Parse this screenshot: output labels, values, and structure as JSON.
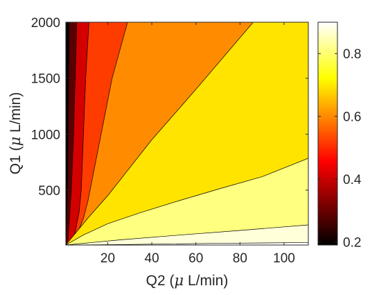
{
  "chart_data": {
    "type": "contour",
    "title": "",
    "xlabel_parts": [
      "Q2 (",
      "μ",
      " L/min)"
    ],
    "ylabel_parts": [
      "Q1 (",
      "μ",
      " L/min)"
    ],
    "xlim": [
      1,
      111
    ],
    "ylim": [
      10,
      2000
    ],
    "x_ticks": [
      20,
      40,
      60,
      80,
      100
    ],
    "x_tick_labels": [
      "20",
      "40",
      "60",
      "80",
      "100"
    ],
    "y_ticks": [
      500,
      1000,
      1500,
      2000
    ],
    "y_tick_labels": [
      "500",
      "1000",
      "1500",
      "2000"
    ],
    "colorbar": {
      "colormap": "hot",
      "clim": [
        0.19,
        0.9
      ],
      "ticks": [
        0.2,
        0.4,
        0.6,
        0.8
      ],
      "tick_labels": [
        "0.2",
        "0.4",
        "0.6",
        "0.8"
      ]
    },
    "contour_levels": [
      {
        "level": 0.3,
        "color": "#1a0000",
        "boundary": [
          [
            2.5,
            2000
          ],
          [
            1.8,
            600
          ],
          [
            1.2,
            100
          ],
          [
            1,
            20
          ]
        ]
      },
      {
        "level": 0.4,
        "color": "#5a0000",
        "boundary": [
          [
            6,
            2000
          ],
          [
            4.5,
            1000
          ],
          [
            3.5,
            500
          ],
          [
            2,
            60
          ],
          [
            1,
            15
          ]
        ]
      },
      {
        "level": 0.5,
        "color": "#d40000",
        "boundary": [
          [
            11.5,
            2000
          ],
          [
            10,
            1500
          ],
          [
            9,
            1000
          ],
          [
            8,
            500
          ],
          [
            7,
            300
          ],
          [
            5,
            100
          ],
          [
            2,
            20
          ],
          [
            1,
            12
          ]
        ]
      },
      {
        "level": 0.6,
        "color": "#ff3c00",
        "boundary": [
          [
            29,
            2000
          ],
          [
            22,
            1500
          ],
          [
            17,
            1000
          ],
          [
            13,
            600
          ],
          [
            11,
            400
          ],
          [
            9,
            250
          ],
          [
            6,
            100
          ],
          [
            1,
            11
          ]
        ]
      },
      {
        "level": 0.7,
        "color": "#ff8c00",
        "boundary": [
          [
            86,
            2000
          ],
          [
            60,
            1400
          ],
          [
            40,
            950
          ],
          [
            20,
            450
          ],
          [
            11,
            250
          ],
          [
            6,
            130
          ],
          [
            1,
            10
          ]
        ]
      },
      {
        "level": 0.8,
        "color": "#ffe400",
        "boundary": [
          [
            111,
            785
          ],
          [
            90,
            620
          ],
          [
            72,
            520
          ],
          [
            53,
            410
          ],
          [
            35,
            300
          ],
          [
            20,
            200
          ],
          [
            9,
            100
          ],
          [
            1,
            10
          ]
        ]
      },
      {
        "level": 0.9,
        "color": "#ffff80",
        "boundary": [
          [
            111,
            190
          ],
          [
            80,
            140
          ],
          [
            50,
            95
          ],
          [
            25,
            55
          ],
          [
            1,
            10
          ]
        ]
      },
      {
        "level": 0.95,
        "color": "#ffffd9",
        "boundary": [
          [
            111,
            32
          ],
          [
            70,
            25
          ],
          [
            30,
            15
          ],
          [
            1,
            10
          ]
        ]
      }
    ]
  }
}
